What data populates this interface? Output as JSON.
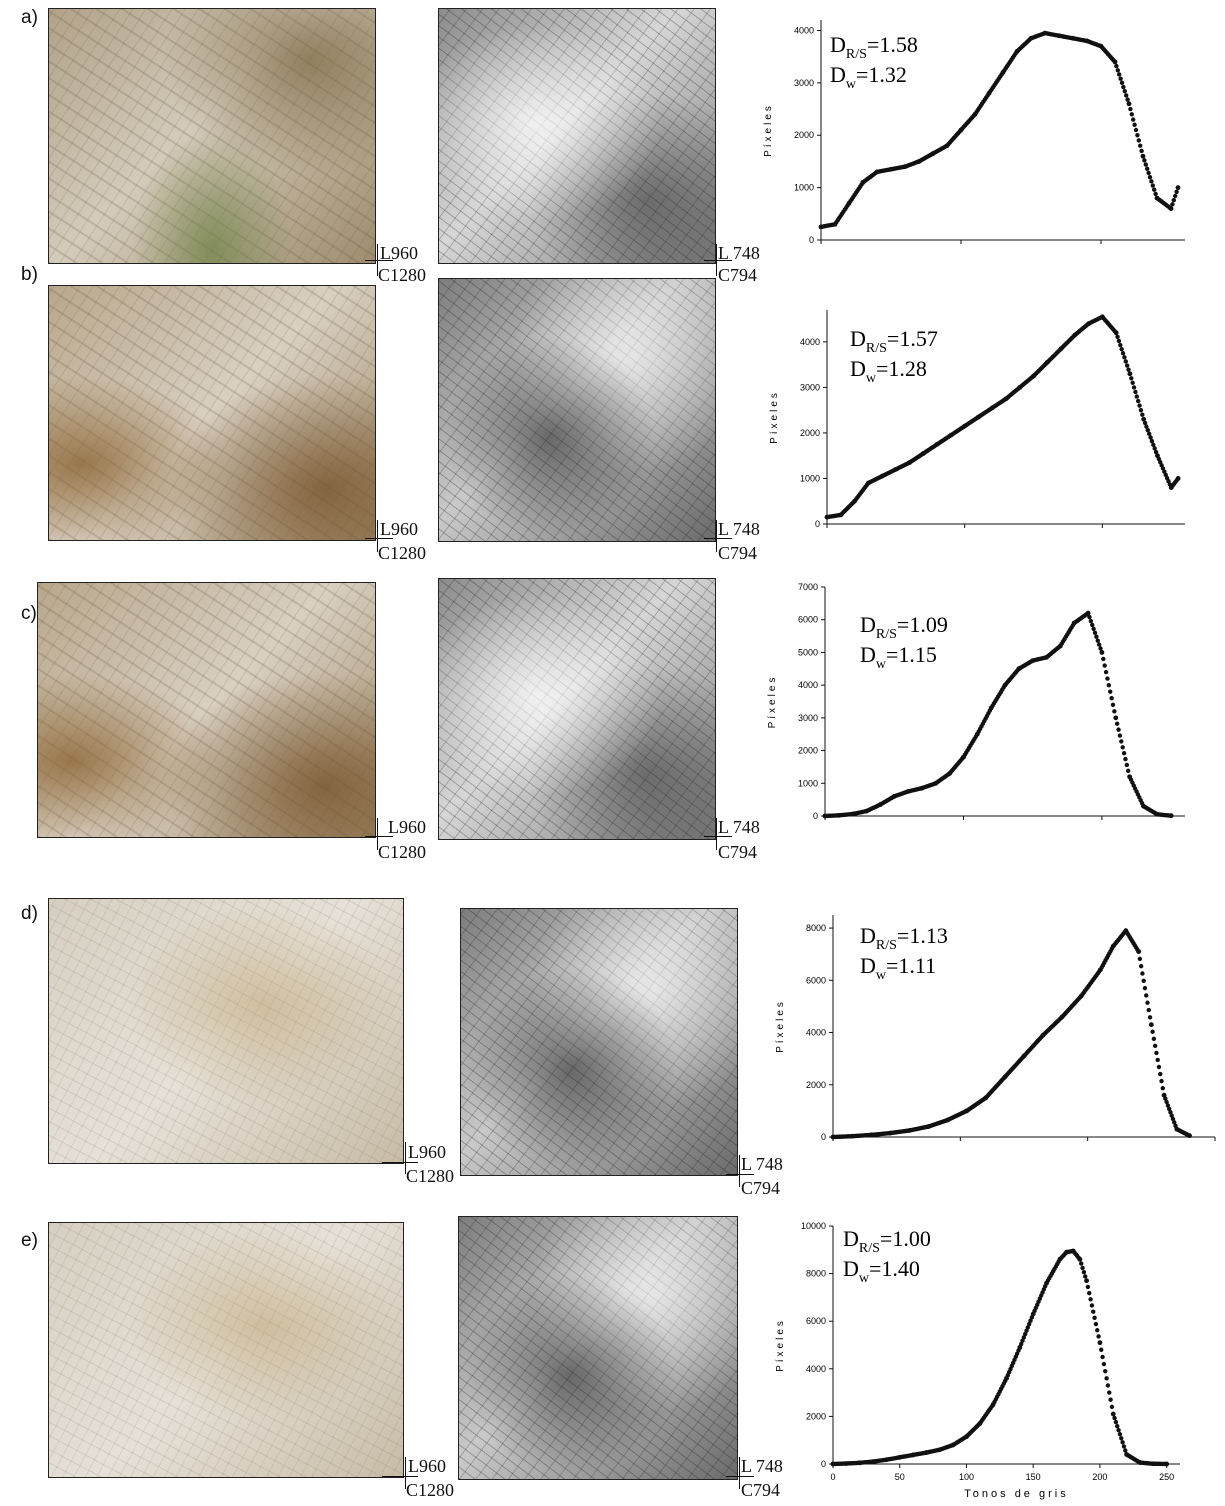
{
  "dims": {
    "color_rows": "L960",
    "color_cols": "C1280",
    "gray_rows": "L 748",
    "gray_cols": "C794"
  },
  "panels": [
    {
      "label": "a)",
      "d_rs": "1.58",
      "d_w": "1.32"
    },
    {
      "label": "b)",
      "d_rs": "1.57",
      "d_w": "1.28"
    },
    {
      "label": "c)",
      "d_rs": "1.09",
      "d_w": "1.15"
    },
    {
      "label": "d)",
      "d_rs": "1.13",
      "d_w": "1.11"
    },
    {
      "label": "e)",
      "d_rs": "1.00",
      "d_w": "1.40"
    }
  ],
  "chart_data": [
    {
      "type": "scatter",
      "panel": "a)",
      "ylabel": "Píxeles",
      "ylim": [
        0,
        4200
      ],
      "yticks": [
        0,
        1000,
        2000,
        3000,
        4000
      ],
      "xlim": [
        0,
        260
      ],
      "x": [
        0,
        10,
        20,
        30,
        40,
        50,
        60,
        70,
        80,
        90,
        100,
        110,
        120,
        130,
        140,
        150,
        160,
        170,
        180,
        190,
        200,
        210,
        220,
        230,
        240,
        250,
        255
      ],
      "y": [
        250,
        300,
        700,
        1100,
        1300,
        1350,
        1400,
        1500,
        1650,
        1800,
        2100,
        2400,
        2800,
        3200,
        3600,
        3850,
        3950,
        3900,
        3850,
        3800,
        3700,
        3400,
        2600,
        1600,
        800,
        600,
        1000
      ]
    },
    {
      "type": "scatter",
      "panel": "b)",
      "ylabel": "Píxeles",
      "ylim": [
        0,
        4700
      ],
      "yticks": [
        0,
        1000,
        2000,
        3000,
        4000
      ],
      "xlim": [
        0,
        260
      ],
      "x": [
        0,
        10,
        20,
        30,
        40,
        50,
        60,
        70,
        80,
        90,
        100,
        110,
        120,
        130,
        140,
        150,
        160,
        170,
        180,
        190,
        200,
        210,
        220,
        230,
        240,
        250,
        255
      ],
      "y": [
        150,
        200,
        500,
        900,
        1050,
        1200,
        1350,
        1550,
        1750,
        1950,
        2150,
        2350,
        2550,
        2750,
        3000,
        3250,
        3550,
        3850,
        4150,
        4400,
        4550,
        4200,
        3300,
        2300,
        1500,
        800,
        1000
      ]
    },
    {
      "type": "scatter",
      "panel": "c)",
      "ylabel": "Píxeles",
      "ylim": [
        0,
        7000
      ],
      "yticks": [
        0,
        1000,
        2000,
        3000,
        4000,
        5000,
        6000,
        7000
      ],
      "xlim": [
        0,
        260
      ],
      "x": [
        0,
        10,
        20,
        30,
        40,
        50,
        60,
        70,
        80,
        90,
        100,
        110,
        120,
        130,
        140,
        150,
        160,
        170,
        180,
        190,
        200,
        210,
        220,
        230,
        240,
        250
      ],
      "y": [
        0,
        20,
        60,
        150,
        350,
        600,
        750,
        850,
        1000,
        1300,
        1800,
        2500,
        3300,
        4000,
        4500,
        4750,
        4850,
        5200,
        5900,
        6200,
        5000,
        3000,
        1200,
        300,
        50,
        10
      ]
    },
    {
      "type": "scatter",
      "panel": "d)",
      "ylabel": "Píxeles",
      "ylim": [
        0,
        8500
      ],
      "yticks": [
        0,
        2000,
        4000,
        6000,
        8000
      ],
      "xlim": [
        0,
        300
      ],
      "x": [
        0,
        15,
        30,
        45,
        60,
        75,
        90,
        105,
        120,
        135,
        150,
        165,
        180,
        195,
        210,
        220,
        230,
        240,
        250,
        260,
        270,
        280
      ],
      "y": [
        0,
        30,
        80,
        150,
        250,
        400,
        650,
        1000,
        1500,
        2300,
        3100,
        3900,
        4600,
        5400,
        6400,
        7300,
        7900,
        7100,
        4300,
        1600,
        300,
        50
      ]
    },
    {
      "type": "scatter",
      "panel": "e)",
      "xlabel": "Tonos de gris",
      "ylabel": "Píxeles",
      "ylim": [
        0,
        10000
      ],
      "yticks": [
        0,
        2000,
        4000,
        6000,
        8000,
        10000
      ],
      "xlim": [
        0,
        260
      ],
      "xticks": [
        0,
        50,
        100,
        150,
        200,
        250
      ],
      "x": [
        0,
        10,
        20,
        30,
        40,
        50,
        60,
        70,
        80,
        90,
        100,
        110,
        120,
        130,
        140,
        150,
        160,
        170,
        175,
        180,
        185,
        190,
        200,
        210,
        220,
        230,
        240,
        250
      ],
      "y": [
        0,
        20,
        50,
        100,
        180,
        280,
        380,
        480,
        600,
        800,
        1150,
        1700,
        2500,
        3600,
        4900,
        6300,
        7600,
        8600,
        8900,
        8950,
        8600,
        7700,
        5100,
        2100,
        400,
        60,
        10,
        0
      ]
    }
  ]
}
